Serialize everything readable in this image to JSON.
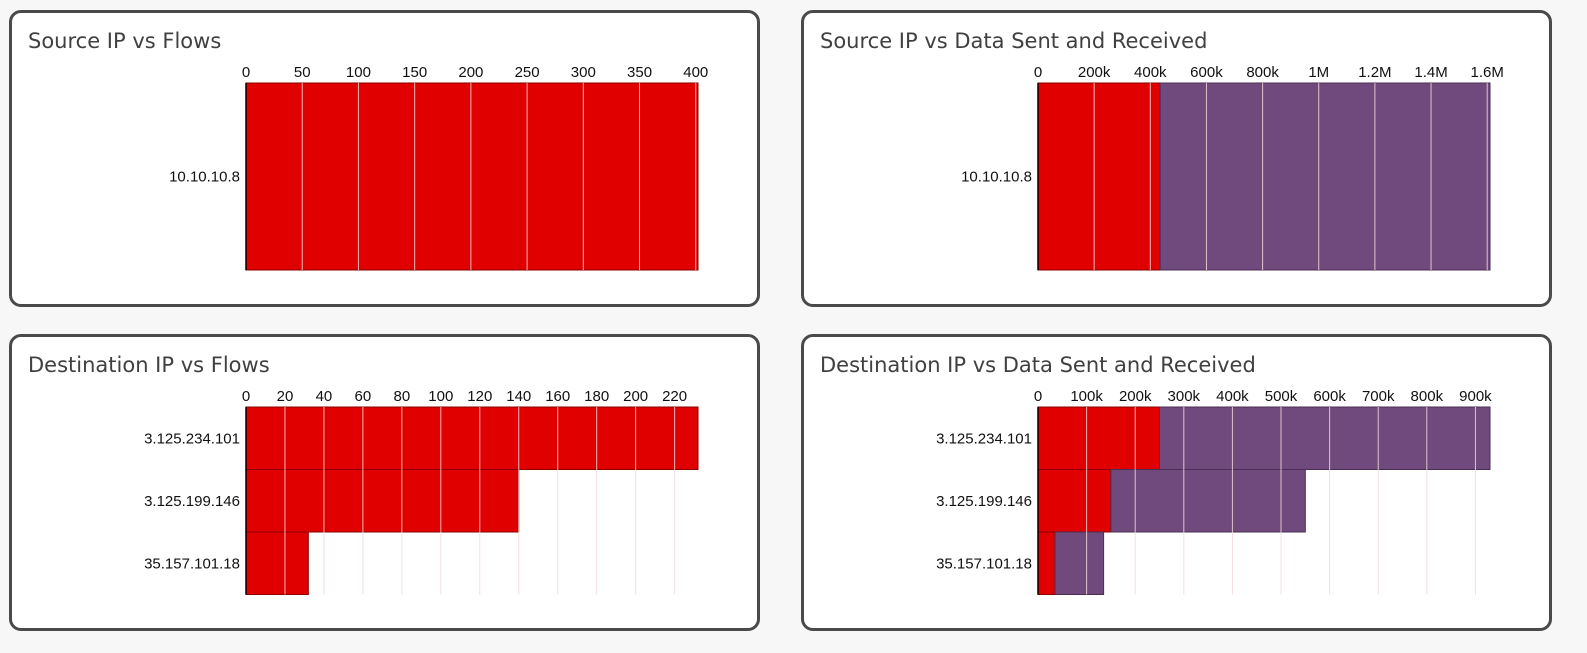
{
  "colors": {
    "sent": "#e00000",
    "received": "#704a7c",
    "panel_border": "#4a4a4a",
    "title_text": "#404040"
  },
  "panels": [
    {
      "id": "src-flows",
      "title": "Source IP vs Flows"
    },
    {
      "id": "src-data",
      "title": "Source IP vs Data Sent and Received"
    },
    {
      "id": "dst-flows",
      "title": "Destination IP vs Flows"
    },
    {
      "id": "dst-data",
      "title": "Destination IP vs Data Sent and Received"
    }
  ],
  "chart_data": [
    {
      "type": "bar",
      "orientation": "horizontal",
      "stacked": false,
      "title": "Source IP vs Flows",
      "categories": [
        "10.10.10.8"
      ],
      "series": [
        {
          "values": [
            402
          ]
        }
      ],
      "xlim": [
        0,
        402
      ],
      "x_ticks": [
        0,
        50,
        100,
        150,
        200,
        250,
        300,
        350,
        400
      ],
      "x_tick_labels": [
        "0",
        "50",
        "100",
        "150",
        "200",
        "250",
        "300",
        "350",
        "400"
      ],
      "x_axis_position": "top",
      "grid": true
    },
    {
      "type": "bar",
      "orientation": "horizontal",
      "stacked": true,
      "title": "Source IP vs Data Sent and Received",
      "categories": [
        "10.10.10.8"
      ],
      "series": [
        {
          "values": [
            435000
          ]
        },
        {
          "values": [
            1175000
          ]
        }
      ],
      "xlim": [
        0,
        1610000
      ],
      "x_ticks": [
        0,
        200000,
        400000,
        600000,
        800000,
        1000000,
        1200000,
        1400000,
        1600000
      ],
      "x_tick_labels": [
        "0",
        "200k",
        "400k",
        "600k",
        "800k",
        "1M",
        "1.2M",
        "1.4M",
        "1.6M"
      ],
      "x_axis_position": "top",
      "grid": true
    },
    {
      "type": "bar",
      "orientation": "horizontal",
      "stacked": false,
      "title": "Destination IP vs Flows",
      "categories": [
        "3.125.234.101",
        "3.125.199.146",
        "35.157.101.18"
      ],
      "series": [
        {
          "values": [
            232,
            140,
            32
          ]
        }
      ],
      "xlim": [
        0,
        232
      ],
      "x_ticks": [
        0,
        20,
        40,
        60,
        80,
        100,
        120,
        140,
        160,
        180,
        200,
        220
      ],
      "x_tick_labels": [
        "0",
        "20",
        "40",
        "60",
        "80",
        "100",
        "120",
        "140",
        "160",
        "180",
        "200",
        "220"
      ],
      "x_axis_position": "top",
      "grid": true
    },
    {
      "type": "bar",
      "orientation": "horizontal",
      "stacked": true,
      "title": "Destination IP vs Data Sent and Received",
      "categories": [
        "3.125.234.101",
        "3.125.199.146",
        "35.157.101.18"
      ],
      "series": [
        {
          "values": [
            250000,
            150000,
            35000
          ]
        },
        {
          "values": [
            680000,
            400000,
            100000
          ]
        }
      ],
      "xlim": [
        0,
        930000
      ],
      "x_ticks": [
        0,
        100000,
        200000,
        300000,
        400000,
        500000,
        600000,
        700000,
        800000,
        900000
      ],
      "x_tick_labels": [
        "0",
        "100k",
        "200k",
        "300k",
        "400k",
        "500k",
        "600k",
        "700k",
        "800k",
        "900k"
      ],
      "x_axis_position": "top",
      "grid": true
    }
  ]
}
